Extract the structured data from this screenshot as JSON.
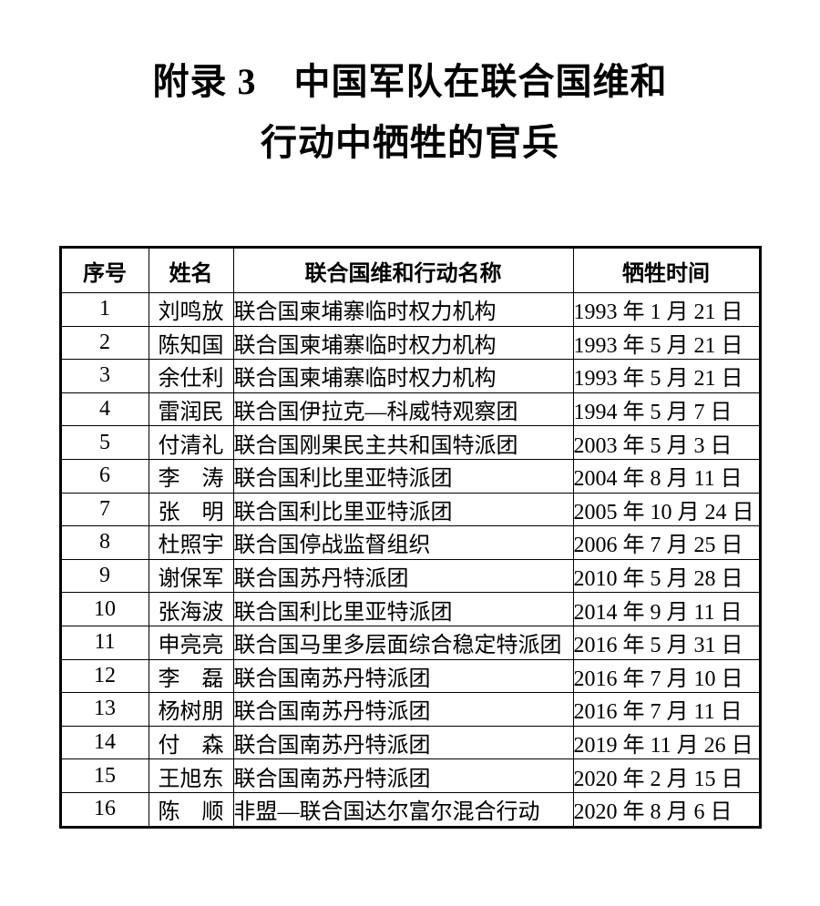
{
  "document": {
    "title_line1": "附录 3　中国军队在联合国维和",
    "title_line2": "行动中牺牲的官兵"
  },
  "table": {
    "headers": {
      "no": "序号",
      "name": "姓名",
      "mission": "联合国维和行动名称",
      "date": "牺牲时间"
    },
    "rows": [
      [
        "1",
        "刘鸣放",
        "联合国柬埔寨临时权力机构",
        "1993 年 1 月 21 日"
      ],
      [
        "2",
        "陈知国",
        "联合国柬埔寨临时权力机构",
        "1993 年 5 月 21 日"
      ],
      [
        "3",
        "余仕利",
        "联合国柬埔寨临时权力机构",
        "1993 年 5 月 21 日"
      ],
      [
        "4",
        "雷润民",
        "联合国伊拉克—科威特观察团",
        "1994 年 5 月 7 日"
      ],
      [
        "5",
        "付清礼",
        "联合国刚果民主共和国特派团",
        "2003 年 5 月 3 日"
      ],
      [
        "6",
        "李　涛",
        "联合国利比里亚特派团",
        "2004 年 8 月 11 日"
      ],
      [
        "7",
        "张　明",
        "联合国利比里亚特派团",
        "2005 年 10 月 24 日"
      ],
      [
        "8",
        "杜照宇",
        "联合国停战监督组织",
        "2006 年 7 月 25 日"
      ],
      [
        "9",
        "谢保军",
        "联合国苏丹特派团",
        "2010 年 5 月 28 日"
      ],
      [
        "10",
        "张海波",
        "联合国利比里亚特派团",
        "2014 年 9 月 11 日"
      ],
      [
        "11",
        "申亮亮",
        "联合国马里多层面综合稳定特派团",
        "2016 年 5 月 31 日"
      ],
      [
        "12",
        "李　磊",
        "联合国南苏丹特派团",
        "2016 年 7 月 10 日"
      ],
      [
        "13",
        "杨树朋",
        "联合国南苏丹特派团",
        "2016 年 7 月 11 日"
      ],
      [
        "14",
        "付　森",
        "联合国南苏丹特派团",
        "2019 年 11 月 26 日"
      ],
      [
        "15",
        "王旭东",
        "联合国南苏丹特派团",
        "2020 年 2 月 15 日"
      ],
      [
        "16",
        "陈　顺",
        "非盟—联合国达尔富尔混合行动",
        "2020 年 8 月 6 日"
      ]
    ]
  },
  "colors": {
    "text": "#000000",
    "border": "#000000",
    "background": "#ffffff"
  }
}
